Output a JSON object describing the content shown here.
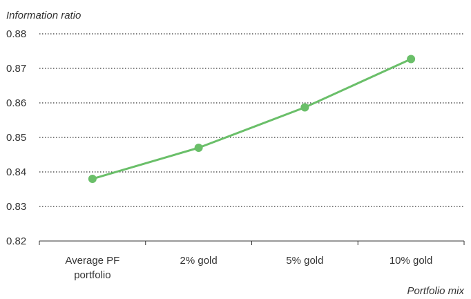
{
  "chart_data": {
    "type": "line",
    "ylabel": "Information ratio",
    "xlabel": "Portfolio mix",
    "categories": [
      [
        "Average PF",
        "portfolio"
      ],
      [
        "2% gold"
      ],
      [
        "5% gold"
      ],
      [
        "10% gold"
      ]
    ],
    "series": [
      {
        "values": [
          0.838,
          0.847,
          0.8587,
          0.8727
        ]
      }
    ],
    "ylim": [
      0.82,
      0.88
    ],
    "yticks": [
      "0.82",
      "0.83",
      "0.84",
      "0.85",
      "0.86",
      "0.87",
      "0.88"
    ],
    "grid": "horizontal-dotted",
    "line_color": "#6abf69",
    "marker_color": "#6abf69"
  }
}
